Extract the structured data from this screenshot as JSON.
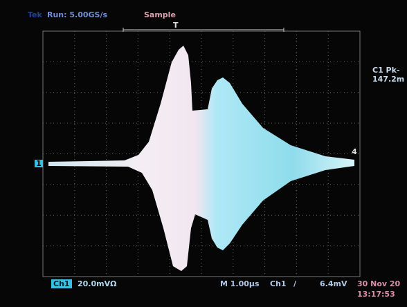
{
  "header": {
    "brand": "Tek",
    "status": "Run: 5.00GS/s",
    "mode": "Sample",
    "trigger_marker": "T"
  },
  "measurement": {
    "label": "C1 Pk-",
    "value": "147.2m"
  },
  "markers": {
    "channel": "1",
    "level": "4"
  },
  "footer": {
    "channel": "Ch1",
    "scale": "20.0mVΩ",
    "timebase": "M 1.00µs",
    "trigger_source": "Ch1",
    "trigger_slope": "/",
    "trigger_level": "6.4mV",
    "date": "30 Nov 20",
    "time": "13:17:53"
  }
}
